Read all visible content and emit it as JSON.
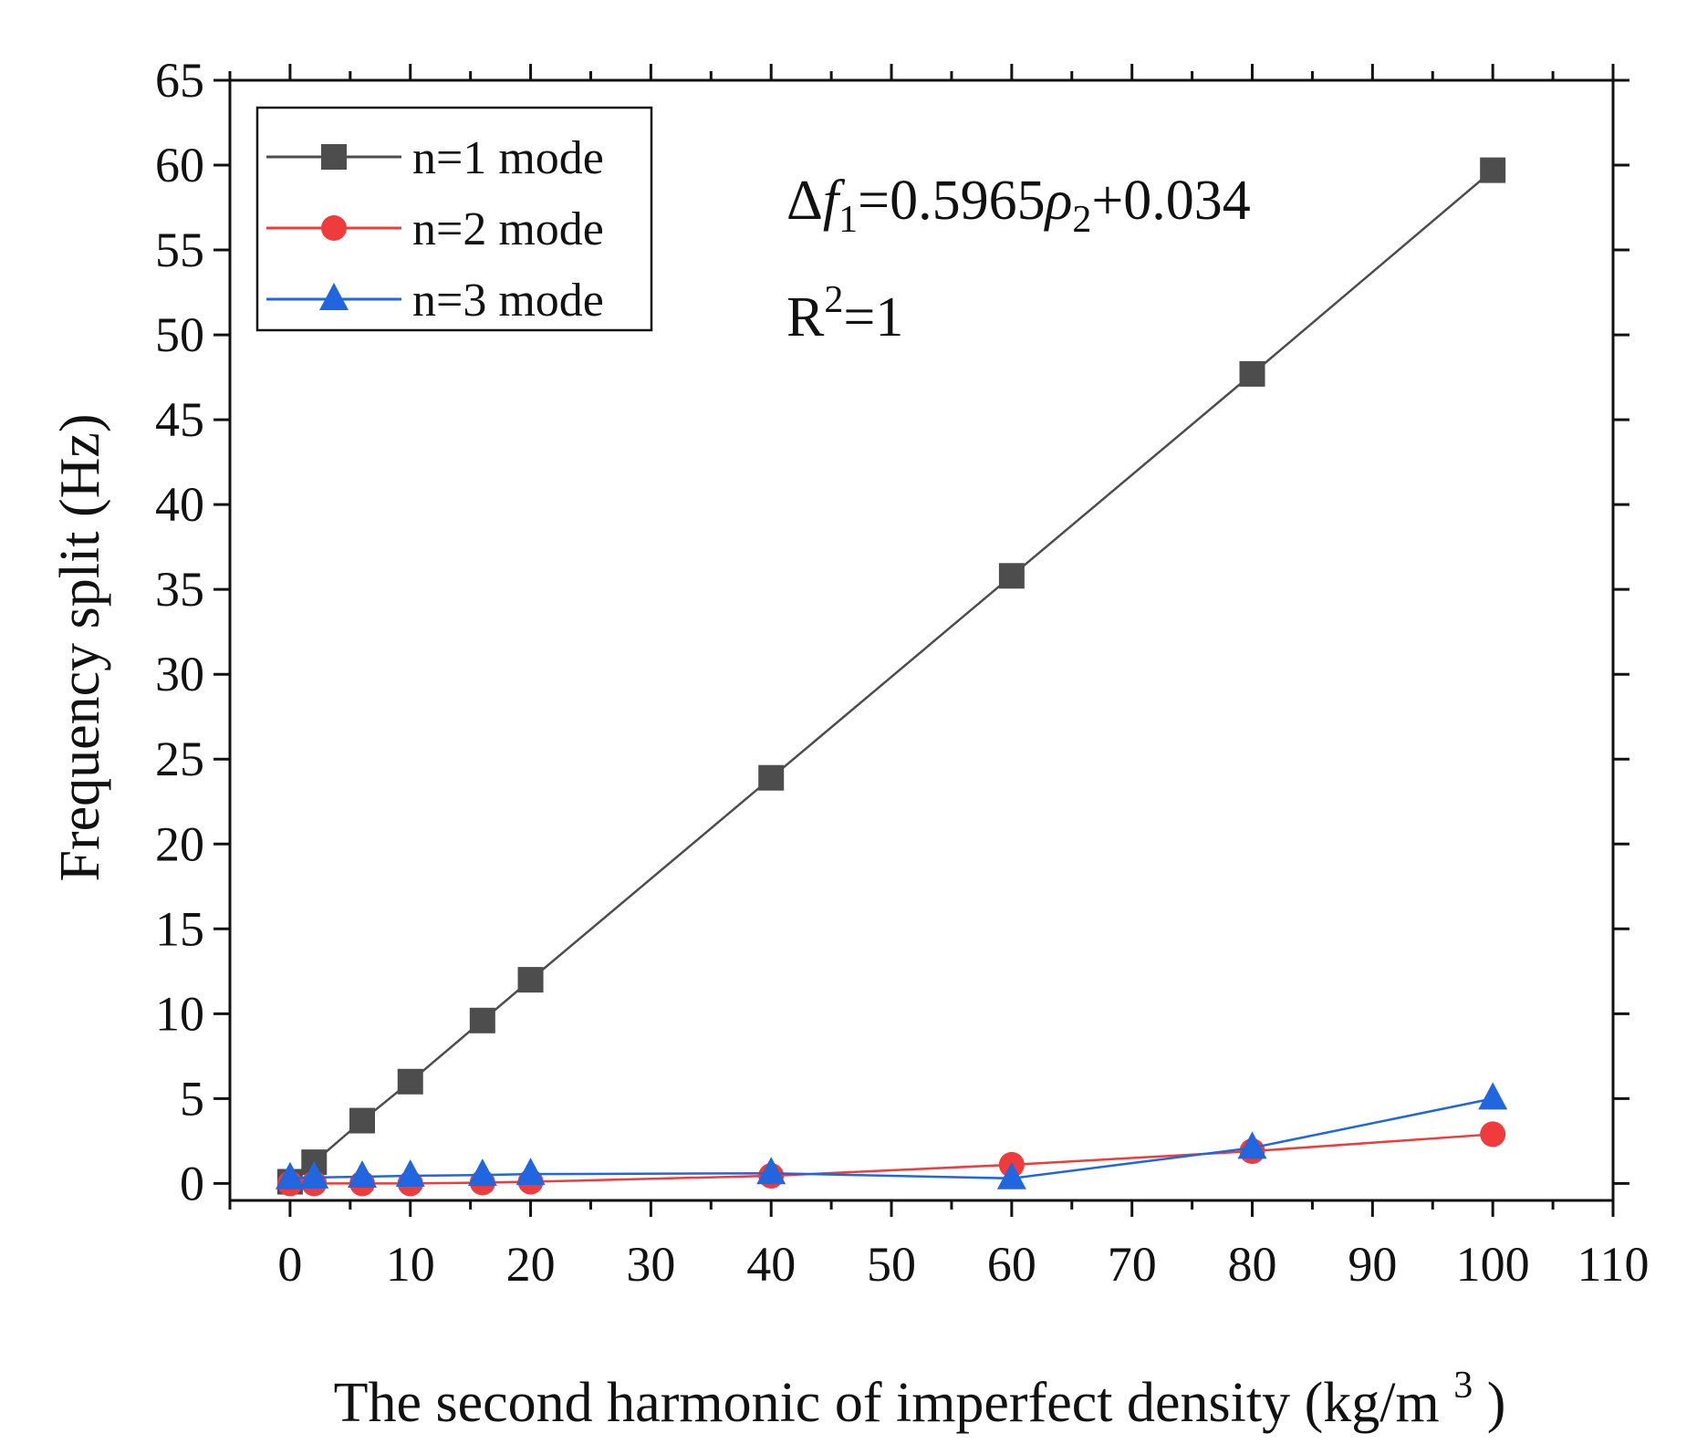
{
  "chart_data": {
    "type": "line",
    "title": "",
    "xlabel": "The second harmonic of imperfect density",
    "xlabel_unit_base": "(kg/m",
    "xlabel_unit_exp": "3",
    "xlabel_unit_close": ")",
    "ylabel": "Frequency split (Hz)",
    "xlim": [
      -5,
      110
    ],
    "ylim": [
      -1,
      65
    ],
    "xticks": [
      0,
      10,
      20,
      30,
      40,
      50,
      60,
      70,
      80,
      90,
      100,
      110
    ],
    "yticks": [
      0,
      5,
      10,
      15,
      20,
      25,
      30,
      35,
      40,
      45,
      50,
      55,
      60,
      65
    ],
    "legend_position": "top-left",
    "series": [
      {
        "name": "n=1 mode",
        "color": "#4d4d4d",
        "marker": "square",
        "x": [
          0,
          2,
          6,
          10,
          16,
          20,
          40,
          60,
          80,
          100
        ],
        "y": [
          0.1,
          1.25,
          3.7,
          6.0,
          9.6,
          12.0,
          23.9,
          35.8,
          47.7,
          59.7
        ]
      },
      {
        "name": "n=2 mode",
        "color": "#ef3b3b",
        "marker": "circle",
        "x": [
          0,
          2,
          6,
          10,
          16,
          20,
          40,
          60,
          80,
          100
        ],
        "y": [
          0.0,
          0.0,
          0.0,
          0.0,
          0.05,
          0.1,
          0.45,
          1.1,
          1.9,
          2.9
        ]
      },
      {
        "name": "n=3 mode",
        "color": "#1f66e0",
        "marker": "triangle",
        "x": [
          0,
          2,
          6,
          10,
          16,
          20,
          40,
          60,
          80,
          100
        ],
        "y": [
          0.3,
          0.35,
          0.4,
          0.45,
          0.5,
          0.55,
          0.6,
          0.3,
          2.1,
          5.0
        ]
      }
    ],
    "annotations": {
      "equation_delta": "Δ",
      "equation_f": "f",
      "equation_f_sub": "1",
      "equation_eq": "=0.5965",
      "equation_rho": "ρ",
      "equation_rho_sub": "2",
      "equation_tail": "+0.034",
      "r2_base": "R",
      "r2_exp": "2",
      "r2_tail": "=1"
    }
  }
}
